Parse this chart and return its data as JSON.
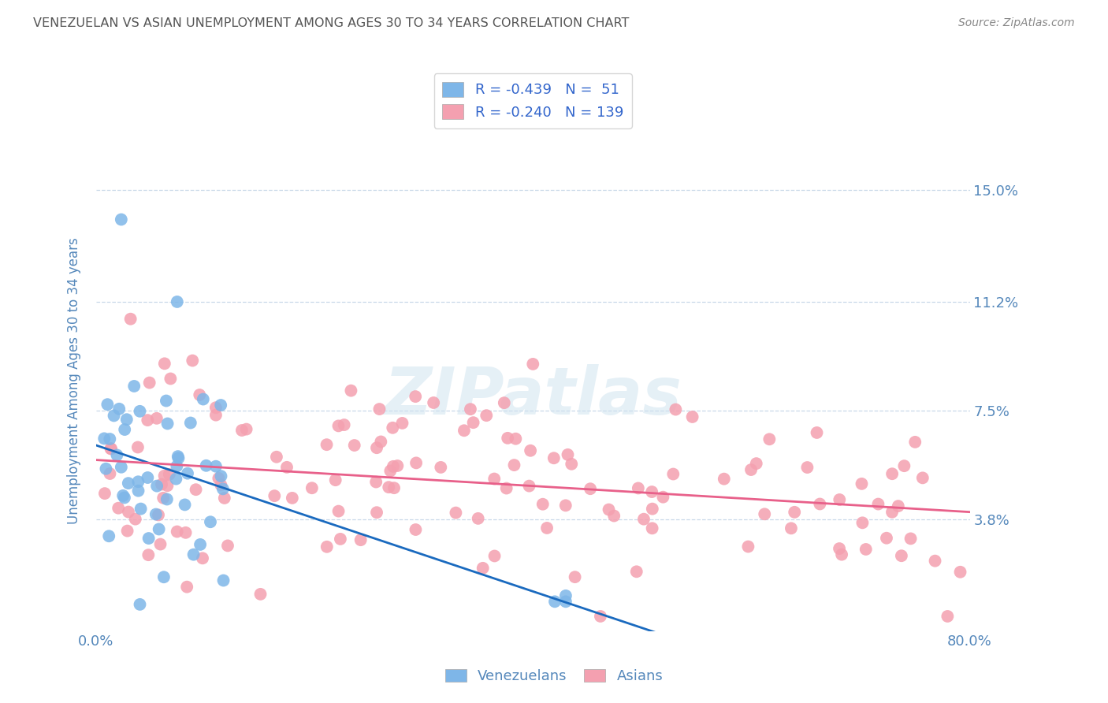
{
  "title": "VENEZUELAN VS ASIAN UNEMPLOYMENT AMONG AGES 30 TO 34 YEARS CORRELATION CHART",
  "source": "Source: ZipAtlas.com",
  "ylabel": "Unemployment Among Ages 30 to 34 years",
  "ytick_labels": [
    "15.0%",
    "11.2%",
    "7.5%",
    "3.8%"
  ],
  "ytick_values": [
    0.15,
    0.112,
    0.075,
    0.038
  ],
  "xlim": [
    0.0,
    0.8
  ],
  "ylim": [
    0.0,
    0.17
  ],
  "watermark": "ZIPatlas",
  "venezuelan_color": "#7eb6e8",
  "asian_color": "#f4a0b0",
  "trend_venezuelan_color": "#1a6abf",
  "trend_asian_color": "#e8608a",
  "venezuelan_R": -0.439,
  "venezuelan_N": 51,
  "asian_R": -0.24,
  "asian_N": 139,
  "background_color": "#ffffff",
  "grid_color": "#c8d8e8",
  "title_color": "#555555",
  "axis_label_color": "#5588bb",
  "tick_label_color": "#5588bb",
  "legend_text_color": "#3366cc",
  "source_color": "#888888",
  "legend_R1": "R = -0.439",
  "legend_N1": "N =  51",
  "legend_R2": "R = -0.240",
  "legend_N2": "N = 139",
  "bottom_legend_label1": "Venezuelans",
  "bottom_legend_label2": "Asians"
}
